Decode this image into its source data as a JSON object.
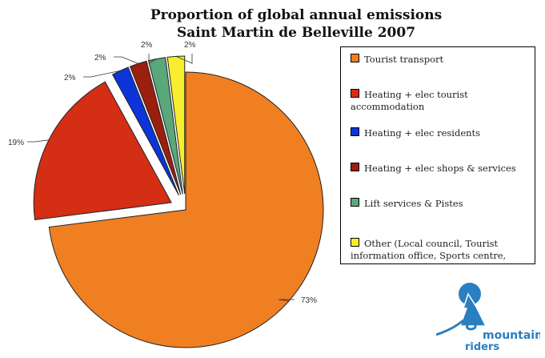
{
  "chart_data": {
    "type": "pie",
    "title": [
      "Proportion of global annual emissions",
      "Saint Martin de Belleville 2007"
    ],
    "slices": [
      {
        "label": "Tourist transport",
        "value": 73,
        "data_label": "73%",
        "color": "#f07f22",
        "exploded": false
      },
      {
        "label": "Heating + elec tourist accommodation",
        "value": 19,
        "data_label": "19%",
        "color": "#d42e14",
        "exploded": true
      },
      {
        "label": "Heating + elec residents",
        "value": 2,
        "data_label": "2%",
        "color": "#0c34d8",
        "exploded": true
      },
      {
        "label": "Heating + elec shops & services",
        "value": 2,
        "data_label": "2%",
        "color": "#9a1f0e",
        "exploded": true
      },
      {
        "label": "Lift services & Pistes",
        "value": 2,
        "data_label": "2%",
        "color": "#5aa77c",
        "exploded": true
      },
      {
        "label": "Other (Local council, Tourist information office, Sports centre,",
        "value": 2,
        "data_label": "2%",
        "color": "#f8ee2e",
        "exploded": true
      }
    ],
    "legend_position": "right"
  },
  "logo": {
    "text": [
      "mountain",
      "riders"
    ],
    "color": "#2a7fc0"
  }
}
